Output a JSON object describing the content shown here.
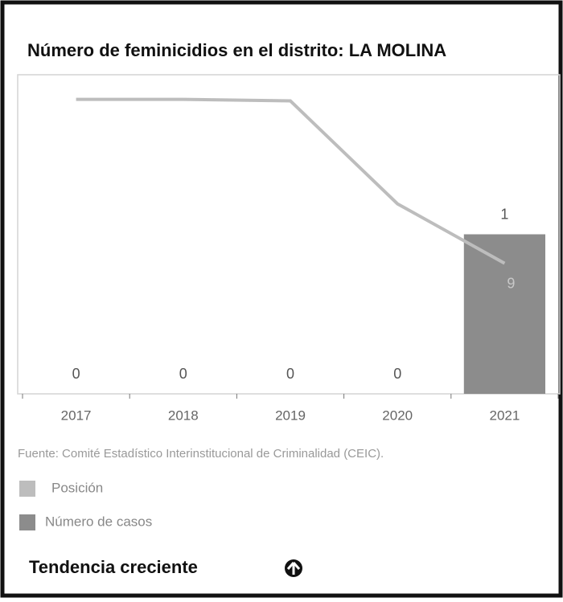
{
  "chart_data": {
    "type": "bar",
    "title": "Número de feminicidios en el distrito: LA MOLINA",
    "categories": [
      "2017",
      "2018",
      "2019",
      "2020",
      "2021"
    ],
    "ylim": [
      0,
      2
    ],
    "y2lim": [
      0,
      22
    ],
    "series": [
      {
        "name": "Posición",
        "color": "#bdbdbd",
        "type": "line",
        "axis": "y2",
        "values": [
          20.3,
          20.3,
          20.2,
          13.1,
          9
        ],
        "value_labels": [
          null,
          null,
          null,
          null,
          "9"
        ]
      },
      {
        "name": "Número de casos",
        "color": "#8c8c8c",
        "type": "bar",
        "values": [
          0,
          0,
          0,
          0,
          1
        ]
      }
    ],
    "source": "Fuente: Comité Estadístico Interinstitucional de Criminalidad (CEIC).",
    "footer": "Tendencia creciente"
  }
}
